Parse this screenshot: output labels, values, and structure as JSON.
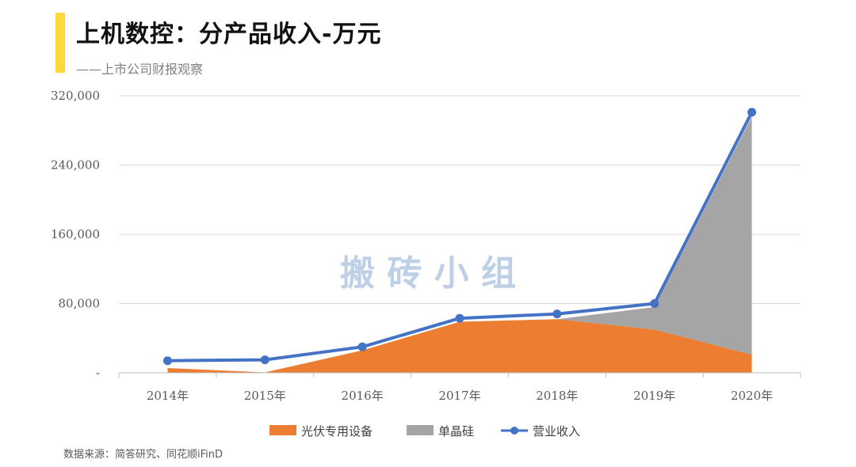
{
  "header": {
    "title": "上机数控：分产品收入-万元",
    "subtitle": "——上市公司财报观察"
  },
  "watermark": "搬 砖 小 组",
  "footer": {
    "source": "数据来源：简答研究、同花顺iFinD"
  },
  "colors": {
    "accent": "#FFD93B",
    "series_pv": "#ED7D31",
    "series_si": "#A5A5A5",
    "series_rev": "#4472C4",
    "watermark": "#B7CCE4"
  },
  "chart_data": {
    "type": "area",
    "categories": [
      "2014年",
      "2015年",
      "2016年",
      "2017年",
      "2018年",
      "2019年",
      "2020年"
    ],
    "ylim": [
      0,
      320000
    ],
    "yticks": [
      0,
      80000,
      160000,
      240000,
      320000
    ],
    "ytick_labels": [
      "-",
      "80,000",
      "160,000",
      "240,000",
      "320,000"
    ],
    "grid": true,
    "legend_position": "bottom",
    "series": [
      {
        "name": "光伏专用设备",
        "type": "area",
        "stack": true,
        "values": [
          5500,
          500,
          26000,
          59000,
          62000,
          50000,
          21000
        ]
      },
      {
        "name": "单晶硅",
        "type": "area",
        "stack": true,
        "values": [
          0,
          0,
          0,
          0,
          0,
          26000,
          275000
        ]
      },
      {
        "name": "营业收入",
        "type": "line",
        "values": [
          14000,
          15000,
          30000,
          63000,
          68000,
          80000,
          301000
        ]
      }
    ]
  }
}
